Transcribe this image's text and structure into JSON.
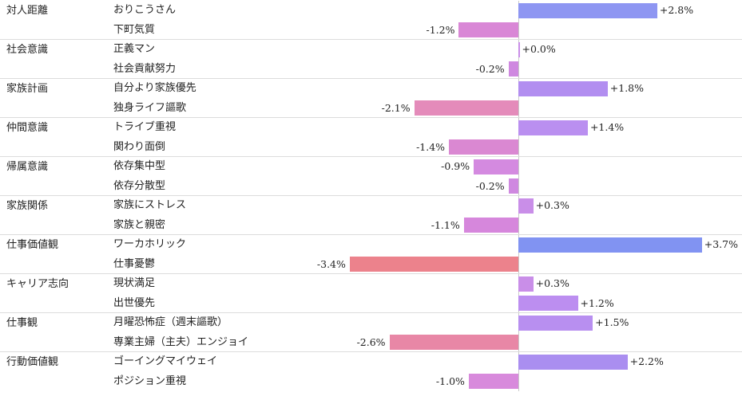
{
  "chart_data": {
    "type": "bar",
    "orientation": "horizontal",
    "unit": "%",
    "groups": [
      {
        "category": "対人距離",
        "items": [
          {
            "label": "おりこうさん",
            "value": 2.8,
            "value_label": "+2.8%",
            "color": "#8e96f2"
          },
          {
            "label": "下町気質",
            "value": -1.2,
            "value_label": "-1.2%",
            "color": "#d987d6"
          }
        ]
      },
      {
        "category": "社会意識",
        "items": [
          {
            "label": "正義マン",
            "value": 0.0,
            "value_label": "+0.0%",
            "color": "#c98ee8"
          },
          {
            "label": "社会貢献努力",
            "value": -0.2,
            "value_label": "-0.2%",
            "color": "#cf88e0"
          }
        ]
      },
      {
        "category": "家族計画",
        "items": [
          {
            "label": "自分より家族優先",
            "value": 1.8,
            "value_label": "+1.8%",
            "color": "#b28ef0"
          },
          {
            "label": "独身ライフ謳歌",
            "value": -2.1,
            "value_label": "-2.1%",
            "color": "#e48bba"
          }
        ]
      },
      {
        "category": "仲間意識",
        "items": [
          {
            "label": "トライブ重視",
            "value": 1.4,
            "value_label": "+1.4%",
            "color": "#ba8ff0"
          },
          {
            "label": "関わり面倒",
            "value": -1.4,
            "value_label": "-1.4%",
            "color": "#da88d2"
          }
        ]
      },
      {
        "category": "帰属意識",
        "items": [
          {
            "label": "依存集中型",
            "value": -0.9,
            "value_label": "-0.9%",
            "color": "#d48ae0"
          },
          {
            "label": "依存分散型",
            "value": -0.2,
            "value_label": "-0.2%",
            "color": "#cf88e0"
          }
        ]
      },
      {
        "category": "家族関係",
        "items": [
          {
            "label": "家族にストレス",
            "value": 0.3,
            "value_label": "+0.3%",
            "color": "#c98ee8"
          },
          {
            "label": "家族と親密",
            "value": -1.1,
            "value_label": "-1.1%",
            "color": "#d687dc"
          }
        ]
      },
      {
        "category": "仕事価値観",
        "items": [
          {
            "label": "ワーカホリック",
            "value": 3.7,
            "value_label": "+3.7%",
            "color": "#8193f2"
          },
          {
            "label": "仕事憂鬱",
            "value": -3.4,
            "value_label": "-3.4%",
            "color": "#ec828c"
          }
        ]
      },
      {
        "category": "キャリア志向",
        "items": [
          {
            "label": "現状満足",
            "value": 0.3,
            "value_label": "+0.3%",
            "color": "#c98ee8"
          },
          {
            "label": "出世優先",
            "value": 1.2,
            "value_label": "+1.2%",
            "color": "#bc8ef0"
          }
        ]
      },
      {
        "category": "仕事観",
        "items": [
          {
            "label": "月曜恐怖症（週末謳歌）",
            "value": 1.5,
            "value_label": "+1.5%",
            "color": "#b88ff0"
          },
          {
            "label": "専業主婦（主夫）エンジョイ",
            "value": -2.6,
            "value_label": "-2.6%",
            "color": "#e887a6"
          }
        ]
      },
      {
        "category": "行動価値観",
        "items": [
          {
            "label": "ゴーイングマイウェイ",
            "value": 2.2,
            "value_label": "+2.2%",
            "color": "#aa8ef0"
          },
          {
            "label": "ポジション重視",
            "value": -1.0,
            "value_label": "-1.0%",
            "color": "#d88adc"
          }
        ]
      }
    ],
    "xlim": [
      -4.0,
      4.0
    ]
  }
}
